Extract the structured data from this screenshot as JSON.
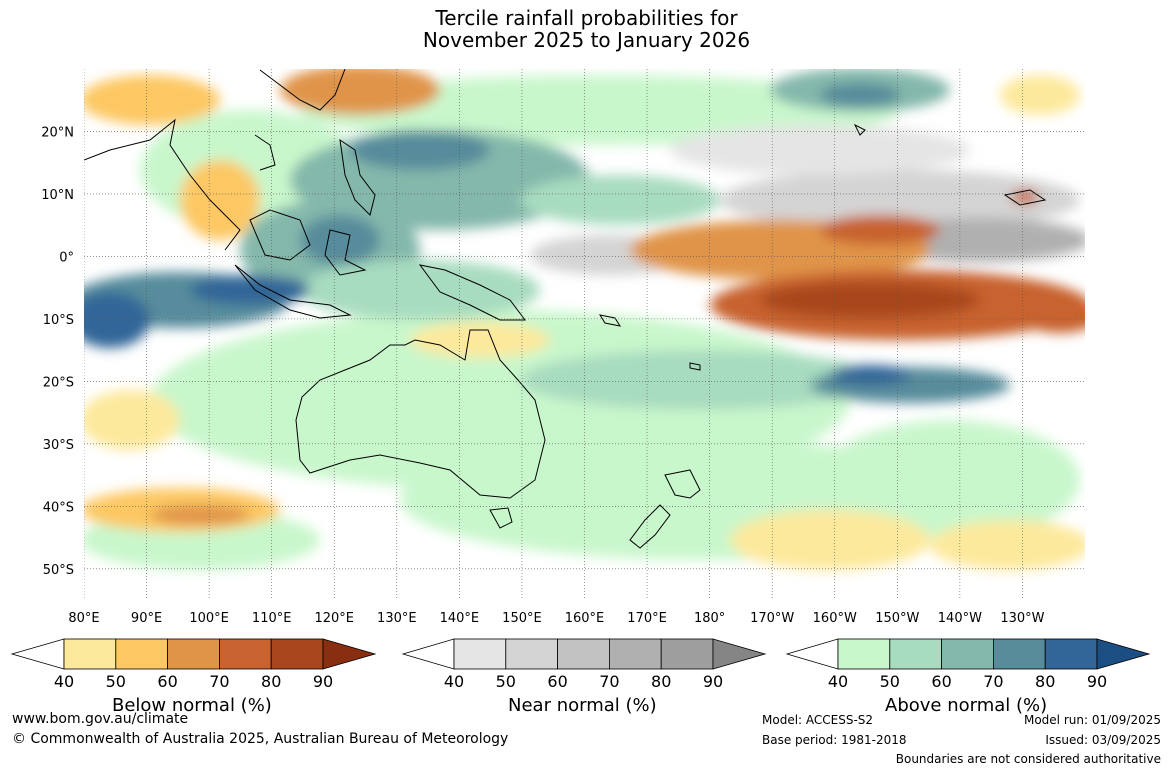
{
  "title_line1": "Tercile rainfall probabilities for",
  "title_line2": "November 2025 to January 2026",
  "map": {
    "lon_range": [
      80,
      240
    ],
    "lat_range": [
      -55,
      30
    ],
    "lat_ticks": [
      "20°N",
      "10°N",
      "0°",
      "10°S",
      "20°S",
      "30°S",
      "40°S",
      "50°S"
    ],
    "lon_ticks": [
      "80°E",
      "90°E",
      "100°E",
      "110°E",
      "120°E",
      "130°E",
      "140°E",
      "150°E",
      "160°E",
      "170°E",
      "180°",
      "170°W",
      "160°W",
      "150°W",
      "140°W",
      "130°W"
    ],
    "grid": "dotted"
  },
  "legends": [
    {
      "title": "Below normal (%)",
      "ticks": [
        "40",
        "50",
        "60",
        "70",
        "80",
        "90"
      ],
      "colors": [
        "#ffffff",
        "#fde99c",
        "#fdc864",
        "#e09448",
        "#c8622e",
        "#a8461e",
        "#8a2e12"
      ]
    },
    {
      "title": "Near normal (%)",
      "ticks": [
        "40",
        "50",
        "60",
        "70",
        "80",
        "90"
      ],
      "colors": [
        "#ffffff",
        "#e5e5e5",
        "#d4d4d4",
        "#c2c2c2",
        "#b0b0b0",
        "#9e9e9e",
        "#858585"
      ]
    },
    {
      "title": "Above normal (%)",
      "ticks": [
        "40",
        "50",
        "60",
        "70",
        "80",
        "90"
      ],
      "colors": [
        "#ffffff",
        "#c9f7cc",
        "#a8dcc0",
        "#84b8ab",
        "#578c9b",
        "#336698",
        "#1b4e82"
      ]
    }
  ],
  "footer": {
    "url": "www.bom.gov.au/climate",
    "copyright": "© Commonwealth of Australia 2025, Australian Bureau of Meteorology",
    "model": "Model: ACCESS-S2",
    "base_period": "Base period: 1981-2018",
    "model_run": "Model run: 01/09/2025",
    "issued": "Issued: 03/09/2025",
    "boundaries": "Boundaries are not considered authoritative"
  }
}
